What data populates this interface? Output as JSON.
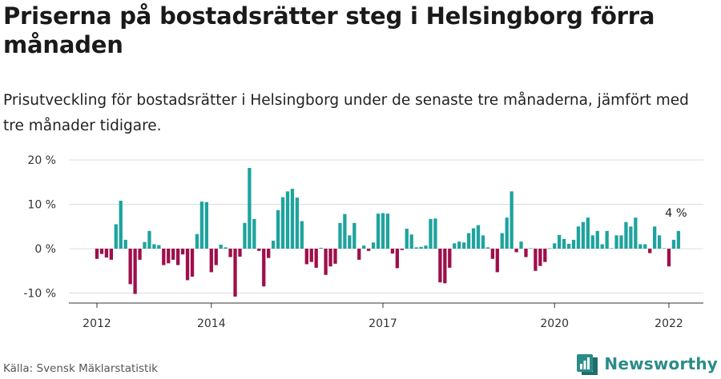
{
  "header": {
    "title": "Priserna på bostadsrätter steg i Helsingborg förra månaden",
    "subtitle": "Prisutveckling för bostadsrätter i Helsingborg under de senaste tre månaderna, jämfört med tre månader tidigare."
  },
  "footer": {
    "source": "Källa: Svensk Mäklarstatistik",
    "brand": "Newsworthy"
  },
  "colors": {
    "positive": "#1fa39e",
    "negative": "#9e0f4b",
    "grid": "#dcdcdc",
    "axis": "#333333",
    "brand": "#2a8c88"
  },
  "chart_data": {
    "type": "bar",
    "title": "Priserna på bostadsrätter steg i Helsingborg förra månaden",
    "ylabel": "",
    "xlabel": "",
    "ylim": [
      -12,
      20
    ],
    "yticks": [
      20,
      10,
      0,
      -10
    ],
    "ytick_labels": [
      "20 %",
      "10 %",
      "0 %",
      "-10 %"
    ],
    "start": "2012-01",
    "xtick_labels": [
      "2012",
      "2014",
      "2017",
      "2020",
      "2022"
    ],
    "xtick_months": [
      "2012-01",
      "2014-01",
      "2017-01",
      "2020-01",
      "2022-01"
    ],
    "annotation": {
      "label": "4 %",
      "month": "2022-03",
      "value": 4
    },
    "values": [
      -2.3,
      -1.2,
      -2,
      -2.5,
      5.5,
      10.8,
      2,
      -8,
      -10.2,
      -2.5,
      1.5,
      4,
      1,
      0.8,
      -3.7,
      -3.3,
      -2.5,
      -3.7,
      -1.3,
      -7.1,
      -6.3,
      3.3,
      10.6,
      10.5,
      -5.3,
      -3.7,
      0.9,
      0.3,
      -1.9,
      -10.8,
      -1.8,
      5.8,
      18.2,
      6.7,
      -0.5,
      -8.5,
      -2.1,
      1.8,
      8.7,
      11.6,
      12.9,
      13.5,
      11.5,
      6.2,
      -3.5,
      -3.0,
      -4.3,
      0.2,
      -5.9,
      -4.0,
      -3.4,
      5.8,
      7.8,
      3.0,
      5.8,
      -2.5,
      0.7,
      -0.5,
      1.4,
      7.9,
      8.0,
      7.9,
      -1.1,
      -4.4,
      -0.3,
      4.5,
      3.2,
      0.3,
      0.4,
      0.7,
      6.7,
      6.8,
      -7.6,
      -7.8,
      -4.3,
      1.2,
      1.6,
      1.4,
      3.5,
      4.6,
      5.3,
      3.0,
      0.3,
      -2.3,
      -5.3,
      3.5,
      7.0,
      12.9,
      -0.8,
      1.6,
      -1.9,
      0.1,
      -5.0,
      -3.9,
      -3.0,
      0.1,
      1.2,
      3.1,
      2.2,
      1.1,
      2.0,
      5.0,
      6.0,
      7.0,
      3.0,
      4.0,
      1.0,
      4.0,
      0.1,
      3.0,
      3.0,
      6.0,
      5.0,
      7.0,
      1.0,
      1.0,
      -1.0,
      5.0,
      3.0,
      0.1,
      -4.0,
      2.0,
      4.0
    ]
  }
}
